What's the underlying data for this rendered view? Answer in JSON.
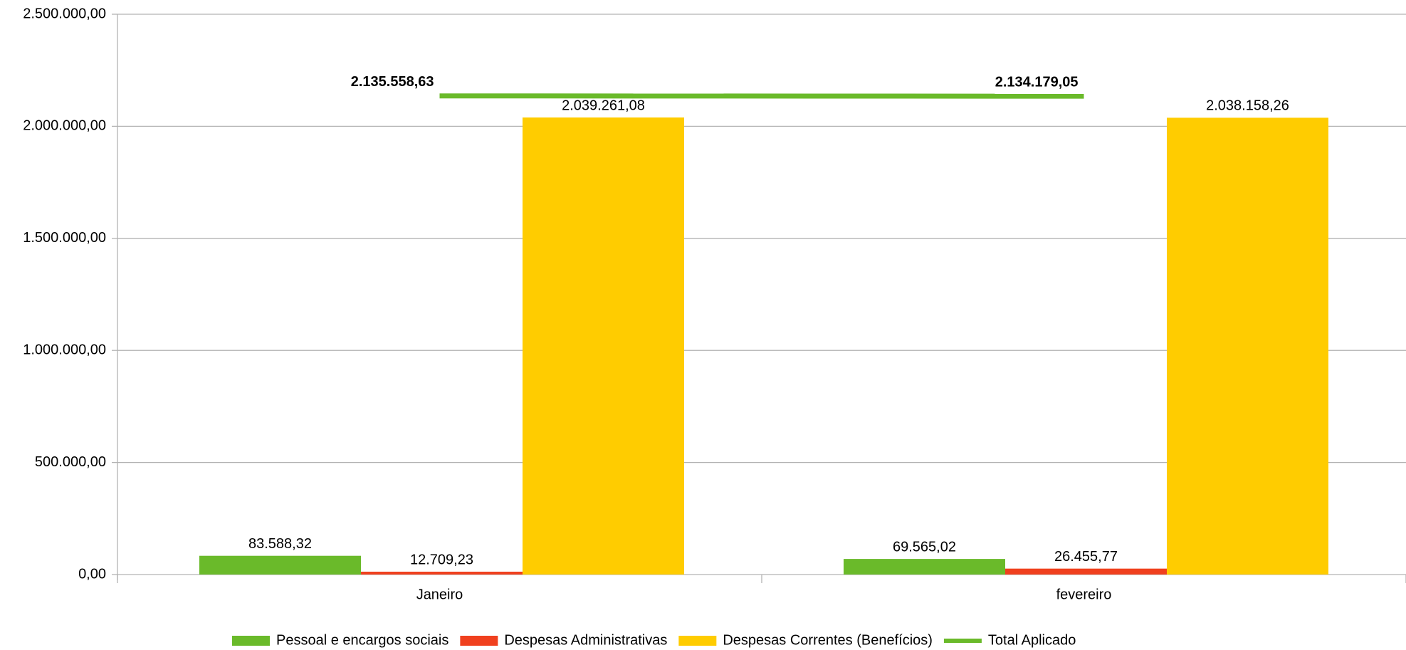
{
  "chart_data": {
    "type": "bar",
    "categories": [
      "Janeiro",
      "fevereiro"
    ],
    "series": [
      {
        "name": "Pessoal e encargos sociais",
        "color": "#6aba2a",
        "values": [
          83588.32,
          69565.02
        ],
        "value_labels": [
          "83.588,32",
          "69.565,02"
        ]
      },
      {
        "name": "Despesas Administrativas",
        "color": "#f0401e",
        "values": [
          12709.23,
          26455.77
        ],
        "value_labels": [
          "12.709,23",
          "26.455,77"
        ]
      },
      {
        "name": "Despesas Correntes (Benefícios)",
        "color": "#ffcc00",
        "values": [
          2039261.08,
          2038158.26
        ],
        "value_labels": [
          "2.039.261,08",
          "2.038.158,26"
        ]
      },
      {
        "name": "Total Aplicado",
        "type": "line",
        "color": "#6aba2a",
        "values": [
          2135558.63,
          2134179.05
        ],
        "value_labels": [
          "2.135.558,63",
          "2.134.179,05"
        ]
      }
    ],
    "ylim": [
      0,
      2500000
    ],
    "yticks": [
      {
        "value": 0,
        "label": "0,00"
      },
      {
        "value": 500000,
        "label": "500.000,00"
      },
      {
        "value": 1000000,
        "label": "1.000.000,00"
      },
      {
        "value": 1500000,
        "label": "1.500.000,00"
      },
      {
        "value": 2000000,
        "label": "2.000.000,00"
      },
      {
        "value": 2500000,
        "label": "2.500.000,00"
      }
    ],
    "grid": true,
    "legend": "bottom"
  }
}
